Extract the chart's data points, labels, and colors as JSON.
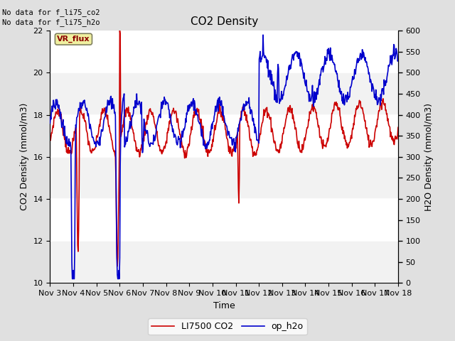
{
  "title": "CO2 Density",
  "xlabel": "Time",
  "ylabel_left": "CO2 Density (mmol/m3)",
  "ylabel_right": "H2O Density (mmol/m3)",
  "annotation_lines": [
    "No data for f_li75_co2",
    "No data for f_li75_h2o"
  ],
  "vr_flux_label": "VR_flux",
  "legend_entries": [
    "LI7500 CO2",
    "op_h2o"
  ],
  "red_color": "#cc0000",
  "blue_color": "#0000cc",
  "left_ylim": [
    10,
    22
  ],
  "right_ylim": [
    0,
    600
  ],
  "left_yticks": [
    10,
    12,
    14,
    16,
    18,
    20,
    22
  ],
  "right_yticks": [
    0,
    50,
    100,
    150,
    200,
    250,
    300,
    350,
    400,
    450,
    500,
    550,
    600
  ],
  "fig_bg_color": "#e0e0e0",
  "plot_bg_bands": [
    "#f0f0f0",
    "#ffffff"
  ],
  "x_tick_labels": [
    "Nov 3",
    "Nov 4",
    "Nov 5",
    "Nov 6",
    "Nov 7",
    "Nov 8",
    "Nov 9",
    "Nov 10",
    "Nov 11",
    "Nov 12",
    "Nov 13",
    "Nov 14",
    "Nov 15",
    "Nov 16",
    "Nov 17",
    "Nov 18"
  ],
  "grid_color": "#d8d8d8",
  "band_colors": [
    "#f2f2f2",
    "#ffffff"
  ]
}
